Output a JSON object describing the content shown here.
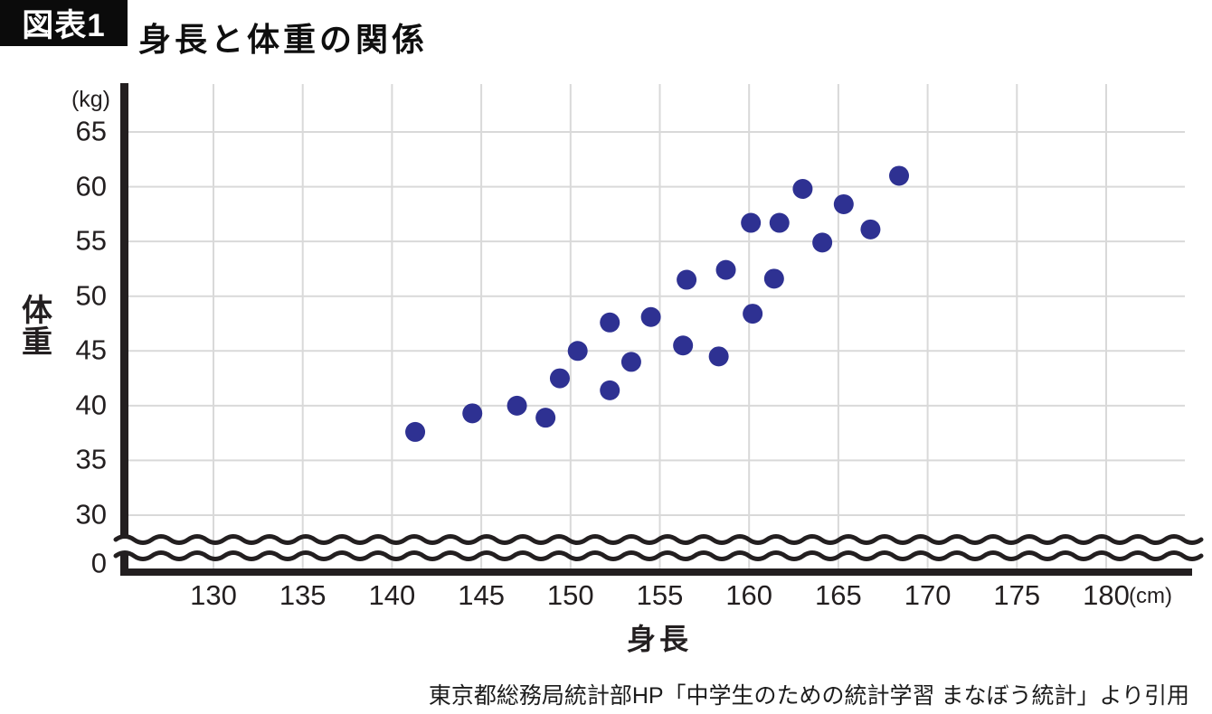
{
  "header": {
    "tag": "図表1",
    "title": "身長と体重の関係"
  },
  "chart_data": {
    "type": "scatter",
    "title": "身長と体重の関係",
    "xlabel": "身長",
    "ylabel": "体\n重",
    "x_axis": {
      "min": 130,
      "max": 180,
      "step": 5,
      "unit": "(cm)",
      "extra_tick": null
    },
    "y_axis": {
      "min": 30,
      "max": 65,
      "step": 5,
      "unit": "(kg)",
      "extra_tick": 0,
      "axis_break": true
    },
    "grid": true,
    "legend": "none",
    "points": [
      [
        141.3,
        37.6
      ],
      [
        144.5,
        39.3
      ],
      [
        147.0,
        40.0
      ],
      [
        148.6,
        38.9
      ],
      [
        149.4,
        42.5
      ],
      [
        150.4,
        45.0
      ],
      [
        152.2,
        41.4
      ],
      [
        152.2,
        47.6
      ],
      [
        153.4,
        44.0
      ],
      [
        154.5,
        48.1
      ],
      [
        156.3,
        45.5
      ],
      [
        156.5,
        51.5
      ],
      [
        158.3,
        44.5
      ],
      [
        158.7,
        52.4
      ],
      [
        160.1,
        56.7
      ],
      [
        160.2,
        48.4
      ],
      [
        161.4,
        51.6
      ],
      [
        161.7,
        56.7
      ],
      [
        163.0,
        59.8
      ],
      [
        164.1,
        54.9
      ],
      [
        165.3,
        58.4
      ],
      [
        166.8,
        56.1
      ],
      [
        168.4,
        61.0
      ]
    ]
  },
  "footer": {
    "caption": "東京都総務局統計部HP「中学生のための統計学習 まなぼう統計」より引用"
  },
  "colors": {
    "point": "#2e3192",
    "axis": "#231f20",
    "grid": "#d9d9d9",
    "tag_bg": "#0b0b0b",
    "tag_text": "#ffffff"
  }
}
